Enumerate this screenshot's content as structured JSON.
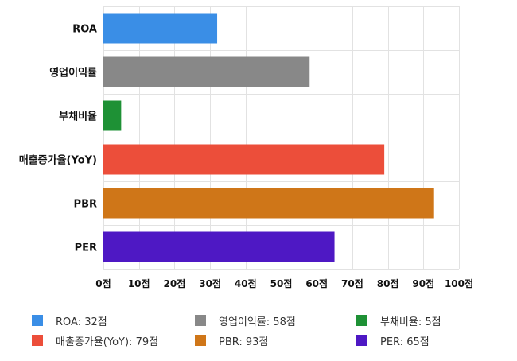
{
  "chart_data": {
    "type": "bar",
    "orientation": "horizontal",
    "categories": [
      "ROA",
      "영업이익률",
      "부채비율",
      "매출증가율(YoY)",
      "PBR",
      "PER"
    ],
    "values": [
      32,
      58,
      5,
      79,
      93,
      65
    ],
    "colors": [
      "#3a8ee6",
      "#888888",
      "#1e9135",
      "#ec4e3a",
      "#cf7618",
      "#4e18c4"
    ],
    "xlim": [
      0,
      100
    ],
    "x_ticks": [
      0,
      10,
      20,
      30,
      40,
      50,
      60,
      70,
      80,
      90,
      100
    ],
    "x_tick_labels": [
      "0점",
      "10점",
      "20점",
      "30점",
      "40점",
      "50점",
      "60점",
      "70점",
      "80점",
      "90점",
      "100점"
    ],
    "grid": true,
    "legend_position": "bottom",
    "legend": [
      "ROA: 32점",
      "영업이익률: 58점",
      "부채비율: 5점",
      "매출증가율(YoY): 79점",
      "PBR: 93점",
      "PER: 65점"
    ]
  }
}
